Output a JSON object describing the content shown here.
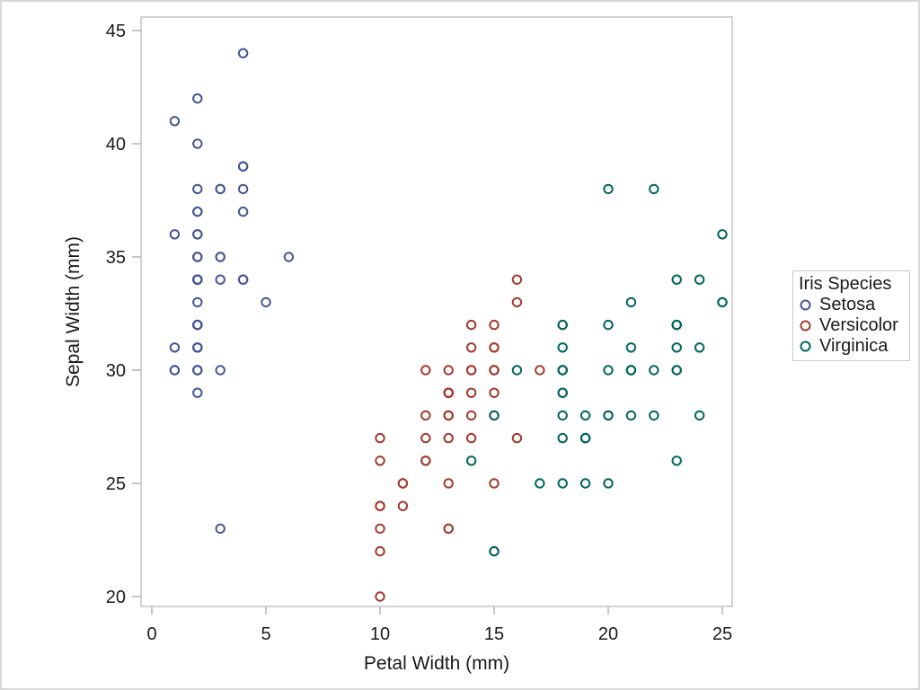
{
  "figure": {
    "background": "#FFFFFF",
    "border_color": "#D8D8D8",
    "text_color": "#1A1A1A",
    "frame_color": "#C4C4C4",
    "tick_color": "#B6B6B6"
  },
  "chart_data": {
    "type": "scatter",
    "title": "",
    "xlabel": "Petal Width (mm)",
    "ylabel": "Sepal Width (mm)",
    "xlim": [
      0,
      25
    ],
    "ylim": [
      20,
      45
    ],
    "xticks": [
      0,
      5,
      10,
      15,
      20,
      25
    ],
    "yticks": [
      20,
      25,
      30,
      35,
      40,
      45
    ],
    "grid": false,
    "marker": "open-circle",
    "legend": {
      "title": "Iris Species",
      "position": "right"
    },
    "series": [
      {
        "name": "Setosa",
        "color": "#445694",
        "points": [
          [
            2,
            35
          ],
          [
            2,
            30
          ],
          [
            2,
            32
          ],
          [
            2,
            31
          ],
          [
            2,
            36
          ],
          [
            4,
            39
          ],
          [
            3,
            34
          ],
          [
            2,
            34
          ],
          [
            2,
            29
          ],
          [
            1,
            31
          ],
          [
            2,
            37
          ],
          [
            2,
            34
          ],
          [
            1,
            30
          ],
          [
            1,
            30
          ],
          [
            2,
            40
          ],
          [
            4,
            44
          ],
          [
            4,
            39
          ],
          [
            3,
            35
          ],
          [
            3,
            38
          ],
          [
            3,
            38
          ],
          [
            2,
            34
          ],
          [
            4,
            37
          ],
          [
            2,
            36
          ],
          [
            5,
            33
          ],
          [
            2,
            34
          ],
          [
            2,
            30
          ],
          [
            4,
            34
          ],
          [
            2,
            35
          ],
          [
            2,
            34
          ],
          [
            2,
            32
          ],
          [
            2,
            31
          ],
          [
            4,
            34
          ],
          [
            1,
            41
          ],
          [
            2,
            42
          ],
          [
            2,
            31
          ],
          [
            2,
            32
          ],
          [
            2,
            35
          ],
          [
            1,
            36
          ],
          [
            2,
            30
          ],
          [
            2,
            34
          ],
          [
            3,
            35
          ],
          [
            3,
            23
          ],
          [
            2,
            32
          ],
          [
            6,
            35
          ],
          [
            4,
            38
          ],
          [
            3,
            30
          ],
          [
            2,
            38
          ],
          [
            2,
            32
          ],
          [
            2,
            37
          ],
          [
            2,
            33
          ]
        ]
      },
      {
        "name": "Versicolor",
        "color": "#A23A2E",
        "points": [
          [
            14,
            32
          ],
          [
            15,
            32
          ],
          [
            15,
            31
          ],
          [
            13,
            23
          ],
          [
            15,
            28
          ],
          [
            13,
            28
          ],
          [
            16,
            33
          ],
          [
            10,
            24
          ],
          [
            13,
            29
          ],
          [
            14,
            27
          ],
          [
            10,
            20
          ],
          [
            15,
            30
          ],
          [
            10,
            22
          ],
          [
            14,
            29
          ],
          [
            13,
            29
          ],
          [
            14,
            31
          ],
          [
            15,
            30
          ],
          [
            10,
            27
          ],
          [
            15,
            22
          ],
          [
            11,
            25
          ],
          [
            18,
            32
          ],
          [
            13,
            28
          ],
          [
            15,
            25
          ],
          [
            12,
            28
          ],
          [
            13,
            29
          ],
          [
            14,
            30
          ],
          [
            14,
            28
          ],
          [
            17,
            30
          ],
          [
            15,
            29
          ],
          [
            10,
            26
          ],
          [
            11,
            24
          ],
          [
            10,
            24
          ],
          [
            12,
            27
          ],
          [
            16,
            27
          ],
          [
            15,
            30
          ],
          [
            16,
            34
          ],
          [
            15,
            31
          ],
          [
            13,
            23
          ],
          [
            13,
            30
          ],
          [
            13,
            25
          ],
          [
            12,
            26
          ],
          [
            14,
            30
          ],
          [
            12,
            26
          ],
          [
            10,
            23
          ],
          [
            13,
            27
          ],
          [
            12,
            30
          ],
          [
            13,
            29
          ],
          [
            13,
            29
          ],
          [
            11,
            25
          ],
          [
            13,
            28
          ]
        ]
      },
      {
        "name": "Virginica",
        "color": "#01665E",
        "points": [
          [
            25,
            33
          ],
          [
            19,
            27
          ],
          [
            21,
            30
          ],
          [
            18,
            29
          ],
          [
            22,
            30
          ],
          [
            21,
            30
          ],
          [
            17,
            25
          ],
          [
            18,
            29
          ],
          [
            18,
            25
          ],
          [
            25,
            36
          ],
          [
            20,
            32
          ],
          [
            19,
            27
          ],
          [
            21,
            30
          ],
          [
            20,
            25
          ],
          [
            24,
            28
          ],
          [
            23,
            32
          ],
          [
            18,
            30
          ],
          [
            22,
            38
          ],
          [
            23,
            26
          ],
          [
            15,
            22
          ],
          [
            23,
            32
          ],
          [
            20,
            28
          ],
          [
            20,
            28
          ],
          [
            18,
            27
          ],
          [
            21,
            33
          ],
          [
            18,
            32
          ],
          [
            18,
            28
          ],
          [
            18,
            30
          ],
          [
            21,
            28
          ],
          [
            16,
            30
          ],
          [
            19,
            28
          ],
          [
            20,
            38
          ],
          [
            22,
            28
          ],
          [
            15,
            28
          ],
          [
            14,
            26
          ],
          [
            23,
            30
          ],
          [
            24,
            34
          ],
          [
            18,
            31
          ],
          [
            18,
            30
          ],
          [
            21,
            31
          ],
          [
            24,
            31
          ],
          [
            23,
            31
          ],
          [
            19,
            27
          ],
          [
            23,
            32
          ],
          [
            25,
            33
          ],
          [
            23,
            30
          ],
          [
            19,
            25
          ],
          [
            20,
            30
          ],
          [
            23,
            34
          ],
          [
            18,
            30
          ]
        ]
      }
    ]
  }
}
